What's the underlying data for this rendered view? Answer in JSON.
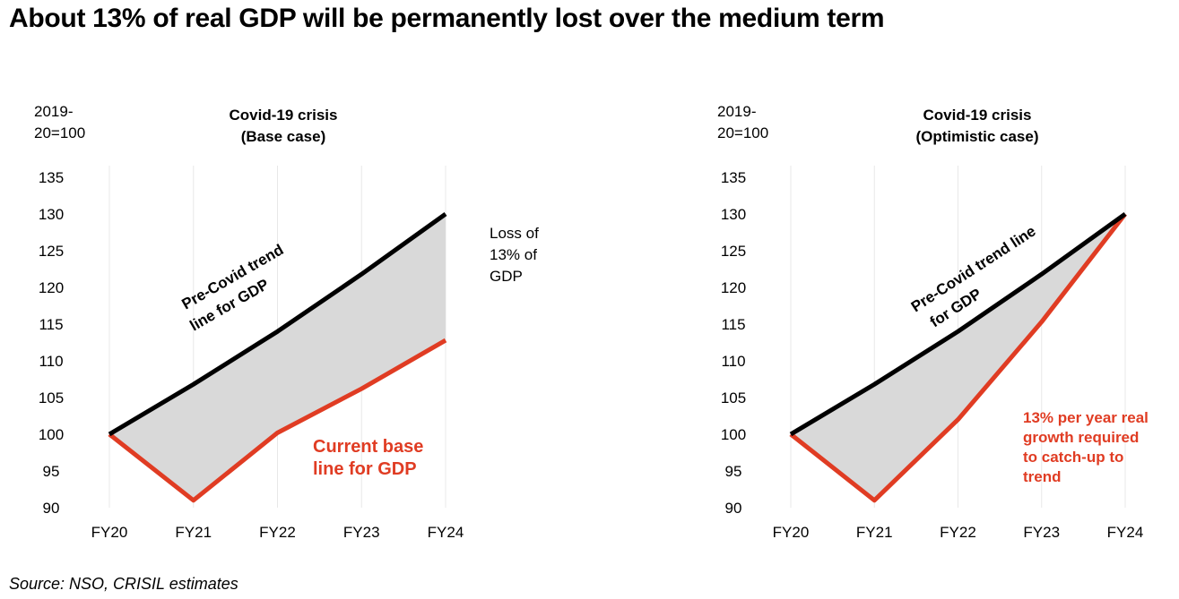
{
  "page": {
    "title": "About 13% of real GDP will be permanently lost over the medium term",
    "source": "Source: NSO, CRISIL estimates"
  },
  "colors": {
    "trend": "#000000",
    "actual": "#e03c23",
    "fill": "#d9d9d9",
    "grid": "#e8e8e8"
  },
  "chart_data": [
    {
      "type": "area",
      "title": [
        "Covid-19 crisis",
        "(Base case)"
      ],
      "unit_label": [
        "2019-",
        "20=100"
      ],
      "categories": [
        "FY20",
        "FY21",
        "FY22",
        "FY23",
        "FY24"
      ],
      "yticks": [
        135,
        130,
        125,
        120,
        115,
        110,
        105,
        100,
        95,
        90
      ],
      "ylim": [
        90,
        135
      ],
      "series": [
        {
          "name": "Pre-Covid trend line for GDP",
          "values": [
            100,
            106.8,
            114,
            121.8,
            130
          ]
        },
        {
          "name": "Current base line for GDP",
          "values": [
            100,
            91,
            100.2,
            106.2,
            112.8
          ]
        }
      ],
      "annotations": {
        "trend_label": [
          "Pre-Covid trend",
          "line for GDP"
        ],
        "actual_label": [
          "Current base",
          "line for GDP"
        ],
        "loss_label": [
          "Loss of",
          "13% of",
          "GDP"
        ]
      }
    },
    {
      "type": "area",
      "title": [
        "Covid-19 crisis",
        "(Optimistic case)"
      ],
      "unit_label": [
        "2019-",
        "20=100"
      ],
      "categories": [
        "FY20",
        "FY21",
        "FY22",
        "FY23",
        "FY24"
      ],
      "yticks": [
        135,
        130,
        125,
        120,
        115,
        110,
        105,
        100,
        95,
        90
      ],
      "ylim": [
        90,
        135
      ],
      "series": [
        {
          "name": "Pre-Covid trend line for GDP",
          "values": [
            100,
            106.8,
            114,
            121.8,
            130
          ]
        },
        {
          "name": "13% per year real growth required to catch-up to trend",
          "values": [
            100,
            91,
            102,
            115.3,
            130
          ]
        }
      ],
      "annotations": {
        "trend_label": [
          "Pre-Covid trend line",
          "for GDP"
        ],
        "actual_label": [
          "13% per year real",
          "growth required",
          "to catch-up to",
          "trend"
        ]
      }
    }
  ]
}
